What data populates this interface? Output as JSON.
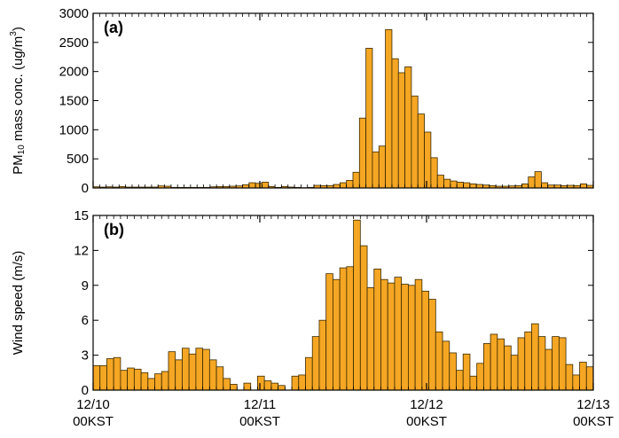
{
  "colors": {
    "bar_fill": "#F5A623",
    "bar_edge": "#3a2a00",
    "axis": "#000000"
  },
  "chart_data": [
    {
      "type": "bar",
      "panel_label": "(a)",
      "ylabel_main": "PM",
      "ylabel_sub": "10",
      "ylabel_rest": " mass conc. (ug/m",
      "ylabel_sup": "3",
      "ylabel_close": ")",
      "ylim": [
        0,
        3000
      ],
      "yticks": [
        0,
        500,
        1000,
        1500,
        2000,
        2500,
        3000
      ],
      "grid": false,
      "values": [
        20,
        15,
        20,
        15,
        25,
        15,
        15,
        15,
        15,
        15,
        35,
        30,
        10,
        10,
        10,
        10,
        10,
        10,
        20,
        25,
        25,
        30,
        35,
        55,
        90,
        80,
        100,
        25,
        10,
        25,
        15,
        10,
        5,
        10,
        45,
        40,
        40,
        60,
        90,
        130,
        270,
        1200,
        2400,
        620,
        720,
        2720,
        2220,
        1980,
        2080,
        1580,
        1270,
        960,
        520,
        220,
        150,
        120,
        100,
        90,
        70,
        60,
        50,
        40,
        30,
        30,
        35,
        40,
        70,
        190,
        280,
        90,
        50,
        50,
        40,
        45,
        40,
        70,
        45
      ],
      "xlim": [
        0,
        77
      ]
    },
    {
      "type": "bar",
      "panel_label": "(b)",
      "ylabel": "Wind speed (m/s)",
      "ylim": [
        0,
        15
      ],
      "yticks": [
        0,
        3,
        6,
        9,
        12,
        15
      ],
      "grid": false,
      "values": [
        2.1,
        2.1,
        2.7,
        2.8,
        1.7,
        1.9,
        1.8,
        1.5,
        1.0,
        1.4,
        1.6,
        3.3,
        2.6,
        3.6,
        3.1,
        3.6,
        3.5,
        2.6,
        2.0,
        1.0,
        0.5,
        0.0,
        0.6,
        0.0,
        1.2,
        0.8,
        0.6,
        0.4,
        0.0,
        1.2,
        1.3,
        2.8,
        4.6,
        6.0,
        10.0,
        9.5,
        10.5,
        10.6,
        14.6,
        12.4,
        8.8,
        10.4,
        9.5,
        9.2,
        9.7,
        9.1,
        9.0,
        9.5,
        8.5,
        7.8,
        5.0,
        4.2,
        3.2,
        1.7,
        3.1,
        1.2,
        2.3,
        4.0,
        4.8,
        4.4,
        3.8,
        3.0,
        4.5,
        5.0,
        5.7,
        4.6,
        3.5,
        4.6,
        4.5,
        2.2,
        1.3,
        2.4,
        2.0
      ],
      "xlim": [
        0,
        73
      ]
    }
  ],
  "x_axis": {
    "ticks": [
      {
        "date": "12/10",
        "time": "00KST"
      },
      {
        "date": "12/11",
        "time": "00KST"
      },
      {
        "date": "12/12",
        "time": "00KST"
      },
      {
        "date": "12/13",
        "time": "00KST"
      }
    ]
  }
}
